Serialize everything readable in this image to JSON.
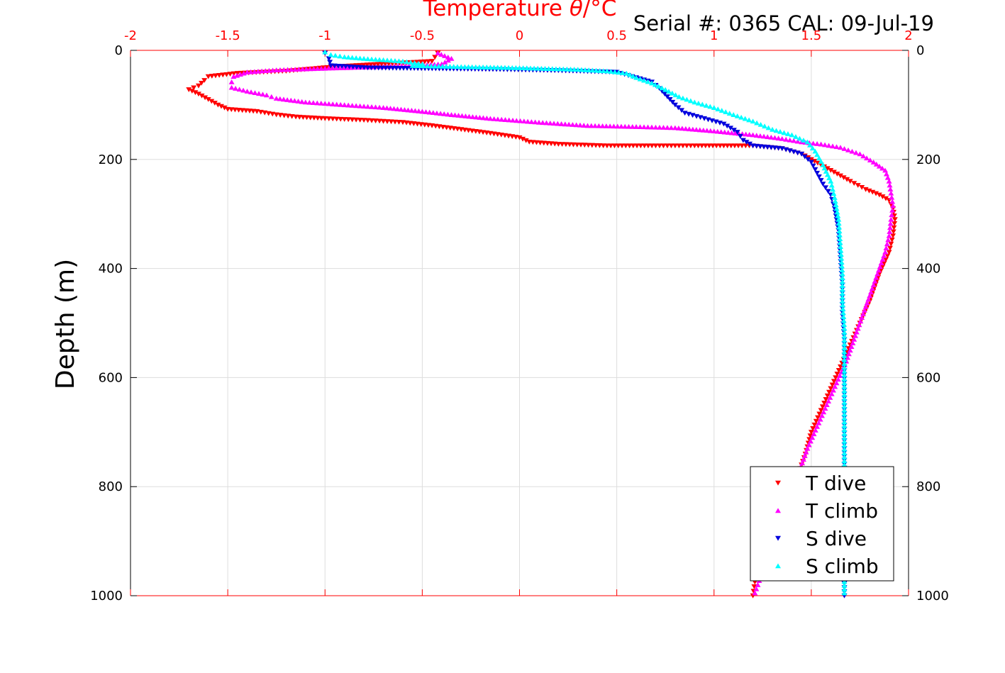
{
  "chart_data": {
    "type": "scatter",
    "title_x": "Temperature",
    "title_x_symbol": "θ",
    "title_x_unit": "/°C",
    "serial_label": "Serial #: 0365  CAL: 09-Jul-19",
    "ylabel": "Depth (m)",
    "xlim": [
      -2,
      2
    ],
    "ylim": [
      0,
      1000
    ],
    "y_reversed": true,
    "x_ticks": [
      "-2",
      "-1.5",
      "-1",
      "-0.5",
      "0",
      "0.5",
      "1",
      "1.5",
      "2"
    ],
    "x_tick_values": [
      -2,
      -1.5,
      -1,
      -0.5,
      0,
      0.5,
      1,
      1.5,
      2
    ],
    "y_ticks": [
      "0",
      "200",
      "400",
      "600",
      "800",
      "1000"
    ],
    "y_tick_values": [
      0,
      200,
      400,
      600,
      800,
      1000
    ],
    "grid": true,
    "legend_position": "bottom-right",
    "colors": {
      "t_dive": "#ff0000",
      "t_climb": "#ff00ff",
      "s_dive": "#0000dd",
      "s_climb": "#00ffff",
      "axis_top": "#ff0000",
      "axis": "#000000",
      "grid": "#dddddd"
    },
    "series": [
      {
        "name": "T dive",
        "marker": "triangle-down",
        "color": "#ff0000",
        "points": [
          [
            -0.42,
            5
          ],
          [
            -0.45,
            20
          ],
          [
            -0.95,
            30
          ],
          [
            -1.2,
            38
          ],
          [
            -1.45,
            42
          ],
          [
            -1.6,
            48
          ],
          [
            -1.62,
            55
          ],
          [
            -1.65,
            65
          ],
          [
            -1.7,
            72
          ],
          [
            -1.65,
            80
          ],
          [
            -1.6,
            90
          ],
          [
            -1.55,
            100
          ],
          [
            -1.5,
            108
          ],
          [
            -1.35,
            112
          ],
          [
            -1.25,
            118
          ],
          [
            -1.15,
            122
          ],
          [
            -1.0,
            125
          ],
          [
            -0.8,
            128
          ],
          [
            -0.6,
            132
          ],
          [
            -0.45,
            138
          ],
          [
            -0.3,
            145
          ],
          [
            -0.15,
            152
          ],
          [
            0.0,
            160
          ],
          [
            0.05,
            168
          ],
          [
            0.2,
            172
          ],
          [
            0.45,
            175
          ],
          [
            0.7,
            175
          ],
          [
            0.9,
            175
          ],
          [
            1.05,
            175
          ],
          [
            1.2,
            175
          ],
          [
            1.35,
            180
          ],
          [
            1.45,
            190
          ],
          [
            1.5,
            200
          ],
          [
            1.55,
            210
          ],
          [
            1.6,
            220
          ],
          [
            1.65,
            230
          ],
          [
            1.7,
            240
          ],
          [
            1.78,
            255
          ],
          [
            1.85,
            265
          ],
          [
            1.9,
            275
          ],
          [
            1.92,
            290
          ],
          [
            1.93,
            310
          ],
          [
            1.92,
            340
          ],
          [
            1.9,
            370
          ],
          [
            1.85,
            410
          ],
          [
            1.8,
            460
          ],
          [
            1.75,
            500
          ],
          [
            1.7,
            540
          ],
          [
            1.65,
            580
          ],
          [
            1.6,
            620
          ],
          [
            1.55,
            660
          ],
          [
            1.5,
            700
          ],
          [
            1.47,
            740
          ],
          [
            1.43,
            780
          ],
          [
            1.38,
            820
          ],
          [
            1.33,
            860
          ],
          [
            1.28,
            900
          ],
          [
            1.24,
            940
          ],
          [
            1.21,
            975
          ],
          [
            1.2,
            1000
          ]
        ]
      },
      {
        "name": "T climb",
        "marker": "triangle-up",
        "color": "#ff00ff",
        "points": [
          [
            -0.42,
            5
          ],
          [
            -0.35,
            15
          ],
          [
            -0.4,
            25
          ],
          [
            -0.7,
            30
          ],
          [
            -1.0,
            33
          ],
          [
            -1.25,
            36
          ],
          [
            -1.4,
            40
          ],
          [
            -1.47,
            48
          ],
          [
            -1.48,
            58
          ],
          [
            -1.48,
            68
          ],
          [
            -1.4,
            75
          ],
          [
            -1.3,
            82
          ],
          [
            -1.25,
            88
          ],
          [
            -1.1,
            95
          ],
          [
            -0.9,
            100
          ],
          [
            -0.7,
            105
          ],
          [
            -0.5,
            112
          ],
          [
            -0.35,
            118
          ],
          [
            -0.15,
            125
          ],
          [
            0.1,
            132
          ],
          [
            0.35,
            138
          ],
          [
            0.6,
            140
          ],
          [
            0.8,
            142
          ],
          [
            1.0,
            148
          ],
          [
            1.2,
            155
          ],
          [
            1.35,
            162
          ],
          [
            1.45,
            168
          ],
          [
            1.55,
            172
          ],
          [
            1.65,
            178
          ],
          [
            1.75,
            190
          ],
          [
            1.82,
            205
          ],
          [
            1.88,
            220
          ],
          [
            1.9,
            240
          ],
          [
            1.91,
            262
          ],
          [
            1.92,
            285
          ],
          [
            1.91,
            310
          ],
          [
            1.9,
            340
          ],
          [
            1.88,
            370
          ],
          [
            1.84,
            410
          ],
          [
            1.8,
            450
          ],
          [
            1.76,
            490
          ],
          [
            1.72,
            530
          ],
          [
            1.68,
            570
          ],
          [
            1.63,
            610
          ],
          [
            1.58,
            650
          ],
          [
            1.53,
            690
          ],
          [
            1.48,
            730
          ],
          [
            1.44,
            770
          ],
          [
            1.4,
            810
          ],
          [
            1.36,
            850
          ],
          [
            1.32,
            890
          ],
          [
            1.28,
            930
          ],
          [
            1.24,
            965
          ],
          [
            1.21,
            995
          ]
        ]
      },
      {
        "name": "S dive",
        "marker": "triangle-down",
        "color": "#0000dd",
        "points": [
          [
            -1.0,
            5
          ],
          [
            -0.98,
            15
          ],
          [
            -0.97,
            28
          ],
          [
            -0.78,
            32
          ],
          [
            -0.1,
            35
          ],
          [
            0.2,
            37
          ],
          [
            0.5,
            40
          ],
          [
            0.6,
            50
          ],
          [
            0.68,
            58
          ],
          [
            0.72,
            70
          ],
          [
            0.76,
            85
          ],
          [
            0.8,
            100
          ],
          [
            0.85,
            115
          ],
          [
            0.95,
            125
          ],
          [
            1.05,
            135
          ],
          [
            1.12,
            150
          ],
          [
            1.15,
            165
          ],
          [
            1.2,
            175
          ],
          [
            1.35,
            180
          ],
          [
            1.45,
            190
          ],
          [
            1.5,
            205
          ],
          [
            1.53,
            225
          ],
          [
            1.56,
            245
          ],
          [
            1.6,
            265
          ],
          [
            1.62,
            290
          ],
          [
            1.64,
            330
          ],
          [
            1.65,
            380
          ],
          [
            1.66,
            430
          ],
          [
            1.66,
            480
          ],
          [
            1.67,
            530
          ],
          [
            1.67,
            580
          ],
          [
            1.67,
            630
          ],
          [
            1.67,
            680
          ],
          [
            1.67,
            730
          ],
          [
            1.67,
            780
          ],
          [
            1.67,
            830
          ],
          [
            1.67,
            880
          ],
          [
            1.67,
            930
          ],
          [
            1.67,
            970
          ],
          [
            1.67,
            1000
          ]
        ]
      },
      {
        "name": "S climb",
        "marker": "triangle-up",
        "color": "#00ffff",
        "points": [
          [
            -1.0,
            3
          ],
          [
            -0.97,
            8
          ],
          [
            -0.9,
            12
          ],
          [
            -0.8,
            15
          ],
          [
            -0.6,
            20
          ],
          [
            -0.5,
            25
          ],
          [
            -0.55,
            28
          ],
          [
            -0.3,
            30
          ],
          [
            0.0,
            32
          ],
          [
            0.3,
            35
          ],
          [
            0.45,
            38
          ],
          [
            0.55,
            42
          ],
          [
            0.6,
            50
          ],
          [
            0.68,
            60
          ],
          [
            0.75,
            72
          ],
          [
            0.82,
            85
          ],
          [
            0.9,
            95
          ],
          [
            1.0,
            105
          ],
          [
            1.1,
            118
          ],
          [
            1.2,
            130
          ],
          [
            1.3,
            145
          ],
          [
            1.4,
            155
          ],
          [
            1.48,
            168
          ],
          [
            1.52,
            185
          ],
          [
            1.56,
            210
          ],
          [
            1.6,
            240
          ],
          [
            1.62,
            270
          ],
          [
            1.64,
            310
          ],
          [
            1.65,
            360
          ],
          [
            1.66,
            410
          ],
          [
            1.66,
            460
          ],
          [
            1.67,
            510
          ],
          [
            1.67,
            560
          ],
          [
            1.67,
            610
          ],
          [
            1.67,
            660
          ],
          [
            1.67,
            710
          ],
          [
            1.67,
            760
          ],
          [
            1.67,
            810
          ],
          [
            1.67,
            860
          ],
          [
            1.67,
            910
          ],
          [
            1.67,
            960
          ],
          [
            1.67,
            995
          ]
        ]
      }
    ]
  }
}
